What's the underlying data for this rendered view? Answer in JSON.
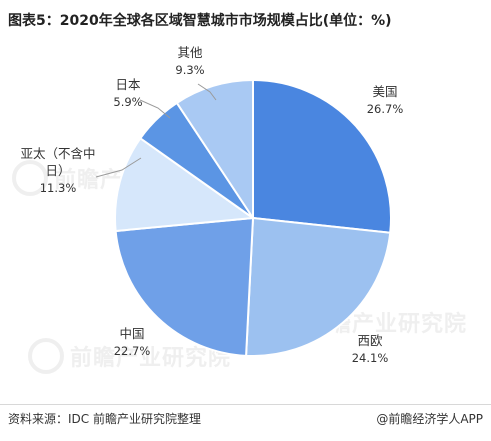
{
  "title": "图表5：2020年全球各区域智慧城市市场规模占比(单位：%)",
  "footer": {
    "source": "资料来源：IDC 前瞻产业研究院整理",
    "credit": "@前瞻经济学人APP"
  },
  "watermark": {
    "text": "前瞻产业研究院"
  },
  "colors": {
    "slice_stroke": "#ffffff",
    "label_text": "#333333",
    "leader_line": "#9a9a9a"
  },
  "chart_data": {
    "type": "pie",
    "title": "图表5：2020年全球各区域智慧城市市场规模占比(单位：%)",
    "unit": "%",
    "start_angle_deg": 0,
    "direction": "clockwise",
    "slices": [
      {
        "label": "美国",
        "value": 26.7,
        "value_label": "26.7%",
        "color": "#4a86e0"
      },
      {
        "label": "西欧",
        "value": 24.1,
        "value_label": "24.1%",
        "color": "#9cc1f0"
      },
      {
        "label": "中国",
        "value": 22.7,
        "value_label": "22.7%",
        "color": "#6fa0e8"
      },
      {
        "label": "亚太（不含中日）",
        "label_lines": [
          "亚太（不含中",
          "日）"
        ],
        "value": 11.3,
        "value_label": "11.3%",
        "color": "#d6e7fb"
      },
      {
        "label": "日本",
        "value": 5.9,
        "value_label": "5.9%",
        "color": "#5b95e4"
      },
      {
        "label": "其他",
        "value": 9.3,
        "value_label": "9.3%",
        "color": "#a9c9f3"
      }
    ]
  }
}
